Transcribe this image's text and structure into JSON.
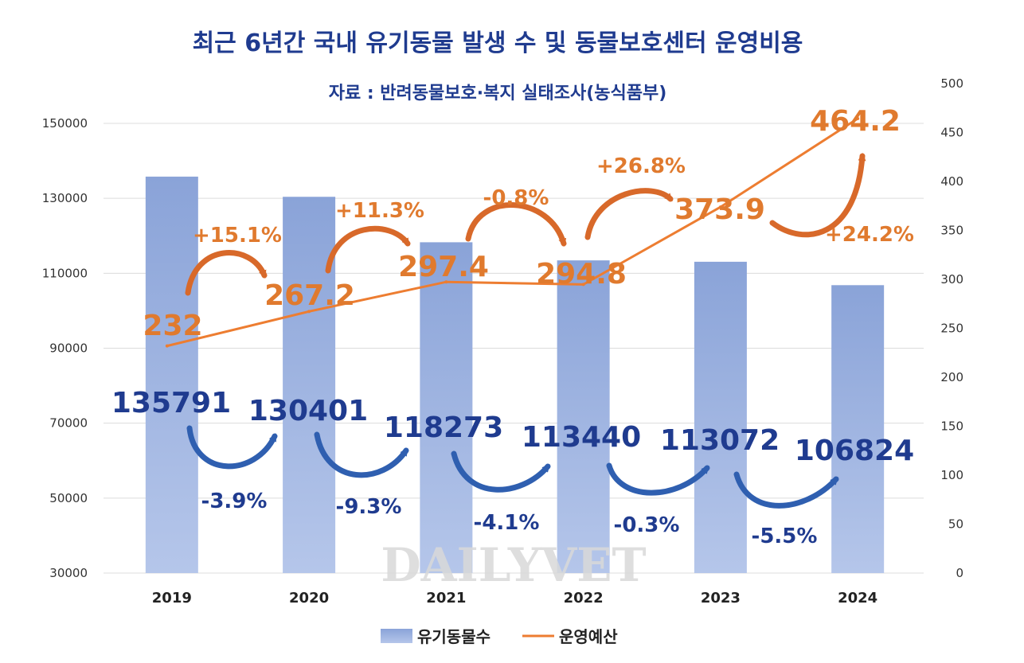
{
  "chart_data": {
    "type": "bar",
    "title": "최근 6년간 국내 유기동물 발생 수 및 동물보호센터 운영비용",
    "subtitle": "자료 : 반려동물보호·복지 실태조사(농식품부)",
    "categories": [
      "2019",
      "2020",
      "2021",
      "2022",
      "2023",
      "2024"
    ],
    "series": [
      {
        "name": "유기동물수",
        "type": "bar",
        "axis": "left",
        "values": [
          135791,
          130401,
          118273,
          113440,
          113072,
          106824
        ],
        "color": "#8ea6da"
      },
      {
        "name": "운영예산",
        "type": "line",
        "axis": "right",
        "values": [
          232,
          267.2,
          297.4,
          294.8,
          373.9,
          464.2
        ],
        "color": "#ed7d31"
      }
    ],
    "value_labels": {
      "counts": [
        "135791",
        "130401",
        "118273",
        "113440",
        "113072",
        "106824"
      ],
      "budgets": [
        "232",
        "267.2",
        "297.4",
        "294.8",
        "373.9",
        "464.2"
      ]
    },
    "change_labels": {
      "counts": [
        "-3.9%",
        "-9.3%",
        "-4.1%",
        "-0.3%",
        "-5.5%"
      ],
      "budgets": [
        "+15.1%",
        "+11.3%",
        "-0.8%",
        "+26.8%",
        "+24.2%"
      ]
    },
    "y_left": {
      "ylim": [
        30000,
        150000
      ],
      "ticks": [
        "150000",
        "130000",
        "110000",
        "90000",
        "70000",
        "50000",
        "30000"
      ]
    },
    "y_right": {
      "ylim": [
        0,
        500
      ],
      "ticks": [
        "500",
        "450",
        "400",
        "350",
        "300",
        "250",
        "200",
        "150",
        "100",
        "50",
        "0"
      ]
    },
    "legend": [
      "유기동물수",
      "운영예산"
    ],
    "legend_position": "bottom",
    "grid": true,
    "watermark": "DAILYVET"
  }
}
